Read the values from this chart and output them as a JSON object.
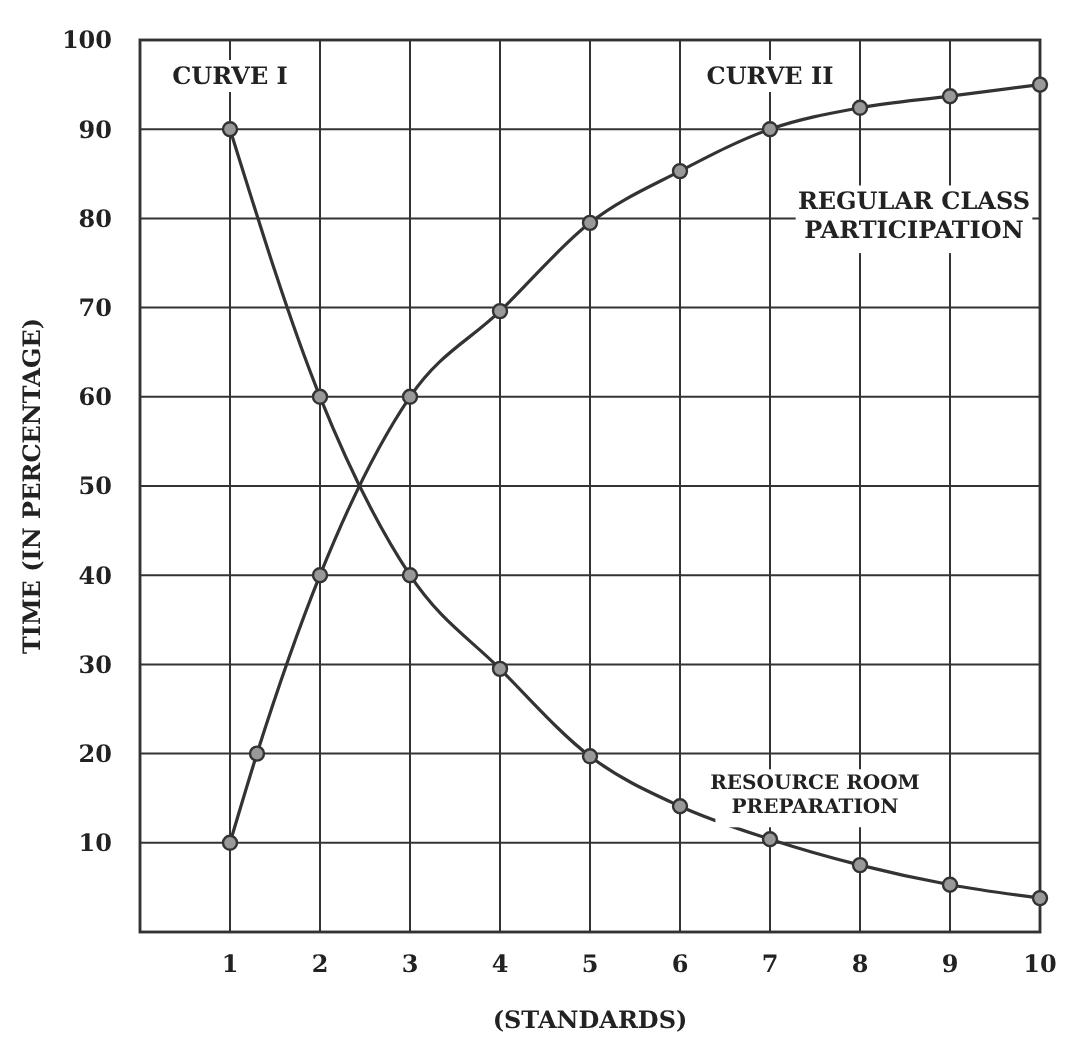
{
  "chart_data": {
    "type": "line",
    "xlabel": "(STANDARDS)",
    "ylabel": "TIME (IN PERCENTAGE)",
    "xlim": [
      0,
      10
    ],
    "xticks": [
      {
        "value": 0,
        "label": null
      },
      1,
      2,
      3,
      4,
      5,
      6,
      7,
      8,
      9,
      10
    ],
    "ylim": [
      0,
      100
    ],
    "yticks": [
      {
        "value": 0,
        "label": null
      },
      10,
      20,
      30,
      40,
      50,
      60,
      70,
      80,
      90,
      100
    ],
    "grid": true,
    "marker": "circle",
    "line_style": "solid",
    "series": [
      {
        "name": "CURVE I",
        "color": "#333333",
        "x": [
          1,
          2,
          3,
          4,
          5,
          6,
          7,
          8,
          9,
          10
        ],
        "values": [
          90,
          60,
          40,
          29.5,
          19.7,
          14.1,
          10.4,
          7.5,
          5.3,
          3.8
        ]
      },
      {
        "name": "CURVE II",
        "color": "#333333",
        "x": [
          1,
          1.3,
          2,
          3,
          4,
          5,
          6,
          7,
          8,
          9,
          10
        ],
        "values": [
          10,
          20,
          40,
          60,
          69.6,
          79.5,
          85.3,
          90,
          92.4,
          93.7,
          95
        ]
      }
    ],
    "annotations": [
      "REGULAR CLASS PARTICIPATION",
      "RESOURCE ROOM PREPARATION"
    ]
  }
}
